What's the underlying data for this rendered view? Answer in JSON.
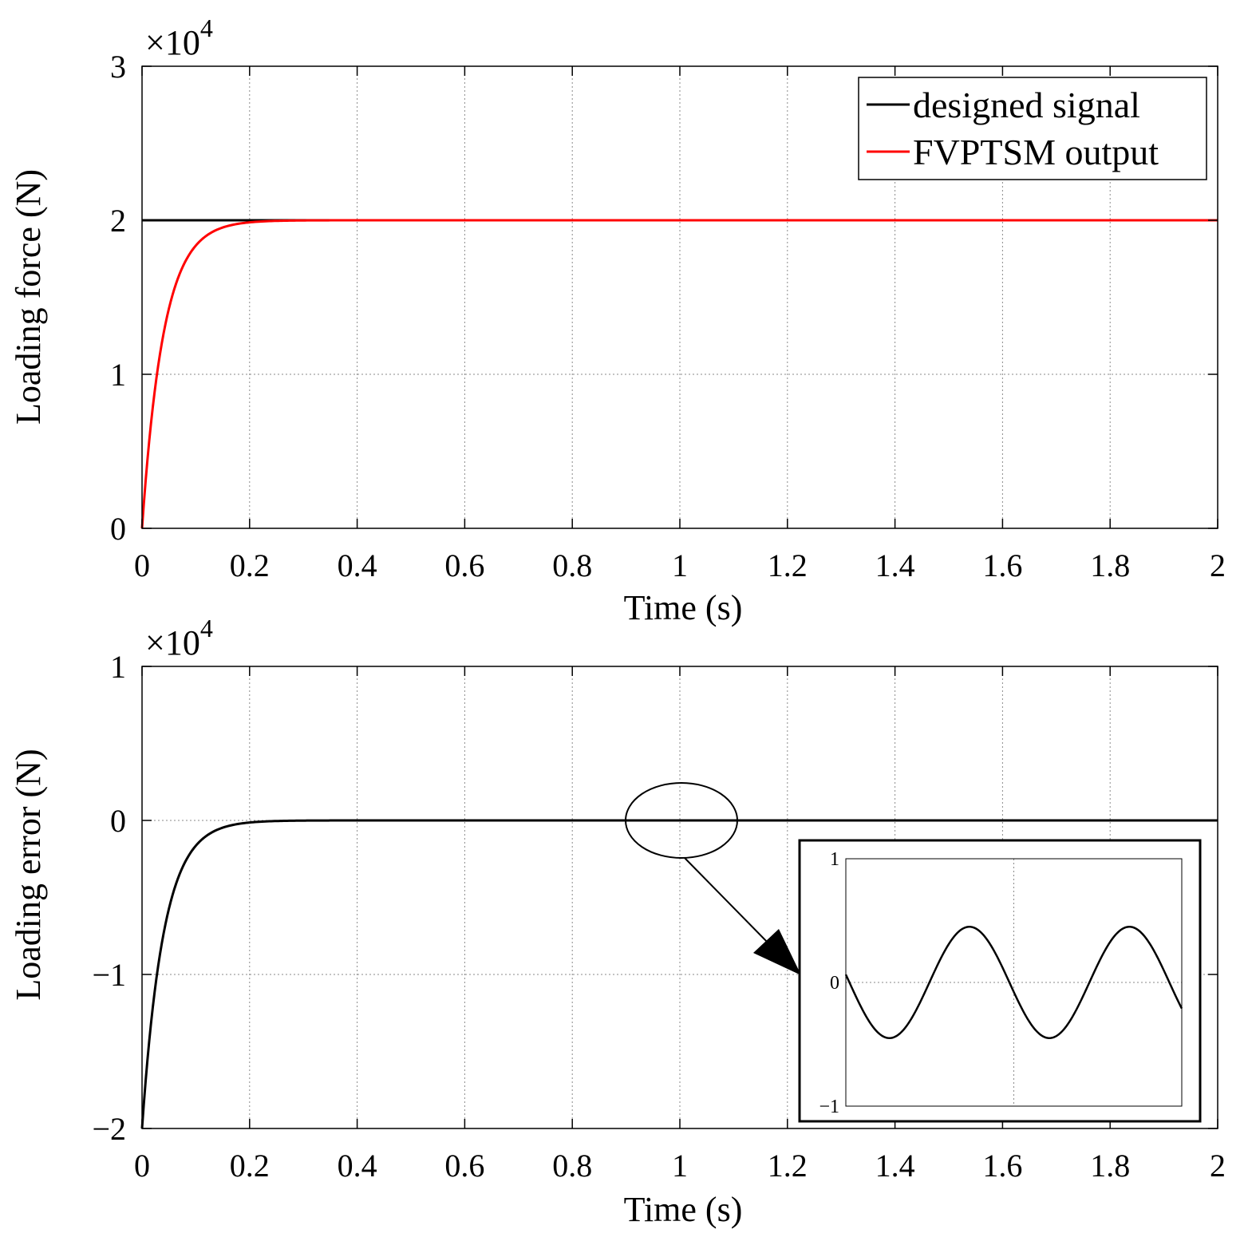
{
  "chart_data": [
    {
      "type": "line",
      "id": "top",
      "title": "",
      "xlabel": "Time (s)",
      "ylabel": "Loading force (N)",
      "y_exponent_label": "×10",
      "y_exponent_power": "4",
      "xlim": [
        0,
        2
      ],
      "ylim": [
        0,
        3
      ],
      "grid": true,
      "xticks": [
        0,
        0.2,
        0.4,
        0.6,
        0.8,
        1,
        1.2,
        1.4,
        1.6,
        1.8,
        2
      ],
      "xtick_labels": [
        "0",
        "0.2",
        "0.4",
        "0.6",
        "0.8",
        "1",
        "1.2",
        "1.4",
        "1.6",
        "1.8",
        "2"
      ],
      "yticks": [
        0,
        1,
        2,
        3
      ],
      "ytick_labels": [
        "0",
        "1",
        "2",
        "3"
      ],
      "legend_position": "top-right",
      "series": [
        {
          "name": "designed signal",
          "color": "#000000",
          "kind": "constant",
          "value": 2
        },
        {
          "name": "FVPTSM output",
          "color": "#ff0000",
          "kind": "exp_rise",
          "final": 2,
          "tau": 0.04
        }
      ]
    },
    {
      "type": "line",
      "id": "bottom",
      "title": "",
      "xlabel": "Time (s)",
      "ylabel": "Loading error (N)",
      "y_exponent_label": "×10",
      "y_exponent_power": "4",
      "xlim": [
        0,
        2
      ],
      "ylim": [
        -2,
        1
      ],
      "grid": true,
      "xticks": [
        0,
        0.2,
        0.4,
        0.6,
        0.8,
        1,
        1.2,
        1.4,
        1.6,
        1.8,
        2
      ],
      "xtick_labels": [
        "0",
        "0.2",
        "0.4",
        "0.6",
        "0.8",
        "1",
        "1.2",
        "1.4",
        "1.6",
        "1.8",
        "2"
      ],
      "yticks": [
        -2,
        -1,
        0,
        1
      ],
      "ytick_labels": [
        "−2",
        "−1",
        "0",
        "1"
      ],
      "series": [
        {
          "name": "loading error",
          "color": "#000000",
          "kind": "exp_decay",
          "initial": -2,
          "tau": 0.04
        }
      ],
      "zoom_region": {
        "x_center": 1.0,
        "y_center": 0
      },
      "inset": {
        "ylim": [
          -1,
          1
        ],
        "yticks": [
          -1,
          0,
          1
        ],
        "ytick_labels": [
          "−1",
          "0",
          "1"
        ],
        "series": {
          "kind": "sine",
          "amplitude": 0.45,
          "cycles": 2.1,
          "phase": 3.0,
          "offset": 0
        }
      }
    }
  ]
}
